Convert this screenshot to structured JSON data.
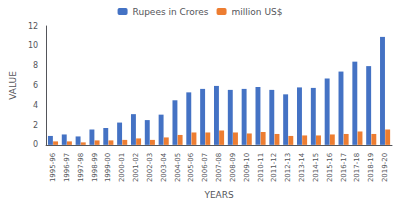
{
  "chart_data": {
    "type": "bar",
    "xlabel": "YEARS",
    "ylabel": "VALUE",
    "categories": [
      "1995-96",
      "1996-97",
      "1997-98",
      "1998-99",
      "1999-00",
      "2000-01",
      "2001-02",
      "2002-03",
      "2003-04",
      "2004-05",
      "2005-06",
      "2006-07",
      "2007-08",
      "2008-09",
      "2009-10",
      "2010-11",
      "2011-12",
      "2012-13",
      "2013-14",
      "2014-15",
      "2015-16",
      "2016-17",
      "2017-18",
      "2018-19",
      "2019-20"
    ],
    "series": [
      {
        "name": "Rupees in Crores",
        "color": "#4472c4",
        "values": [
          0.9,
          1.05,
          0.85,
          1.55,
          1.7,
          2.25,
          3.1,
          2.5,
          3.05,
          4.5,
          5.3,
          5.65,
          5.95,
          5.55,
          5.65,
          5.85,
          5.55,
          5.1,
          5.8,
          5.75,
          6.7,
          7.4,
          8.4,
          7.95,
          10.9
        ]
      },
      {
        "name": "million US$",
        "color": "#ed7d31",
        "values": [
          0.35,
          0.35,
          0.25,
          0.45,
          0.45,
          0.5,
          0.65,
          0.5,
          0.75,
          1.0,
          1.25,
          1.25,
          1.45,
          1.25,
          1.15,
          1.3,
          1.1,
          0.9,
          0.95,
          0.95,
          1.05,
          1.1,
          1.35,
          1.1,
          1.55
        ]
      }
    ],
    "ylim": [
      0,
      12
    ],
    "yticks": [
      0,
      2,
      4,
      6,
      8,
      10,
      12
    ],
    "grid": false,
    "legend": "top"
  }
}
